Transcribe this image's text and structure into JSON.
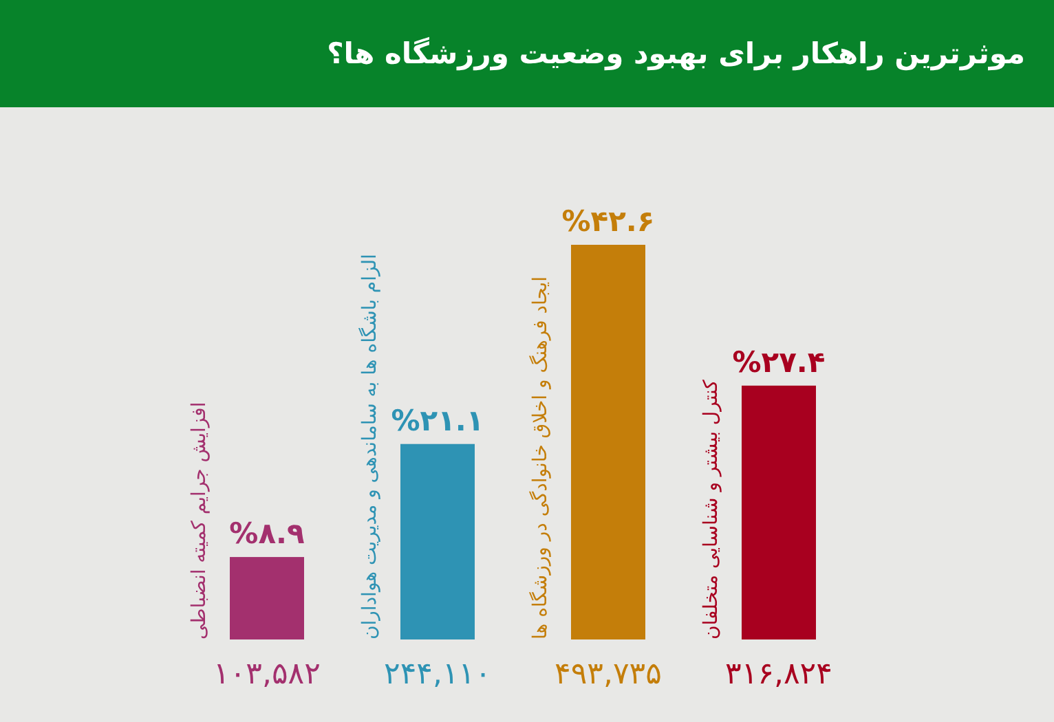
{
  "chart_data": {
    "type": "bar",
    "title": "موثرترین راهکار برای بهبود وضعیت ورزشگاه ها؟",
    "categories": [
      "افزایش جرایم کمیته انضباطی",
      "الزام باشگاه ها به ساماندهی و مدیریت هواداران",
      "ایجاد فرهنگ و اخلاق خانوادگی در ورزشگاه ها",
      "کنترل بیشتر و شناسایی متخلفان"
    ],
    "values": [
      8.9,
      21.1,
      42.6,
      27.4
    ],
    "value_labels": [
      "%۸.۹",
      "%۲۱.۱",
      "%۴۲.۶",
      "%۲۷.۴"
    ],
    "colors": [
      "#a3306e",
      "#2e93b4",
      "#c47e0a",
      "#a8001f"
    ],
    "annotations": [
      "۱۰۳,۵۸۲",
      "۲۴۴,۱۱۰",
      "۴۹۳,۷۳۵",
      "۳۱۶,۸۲۴"
    ]
  }
}
